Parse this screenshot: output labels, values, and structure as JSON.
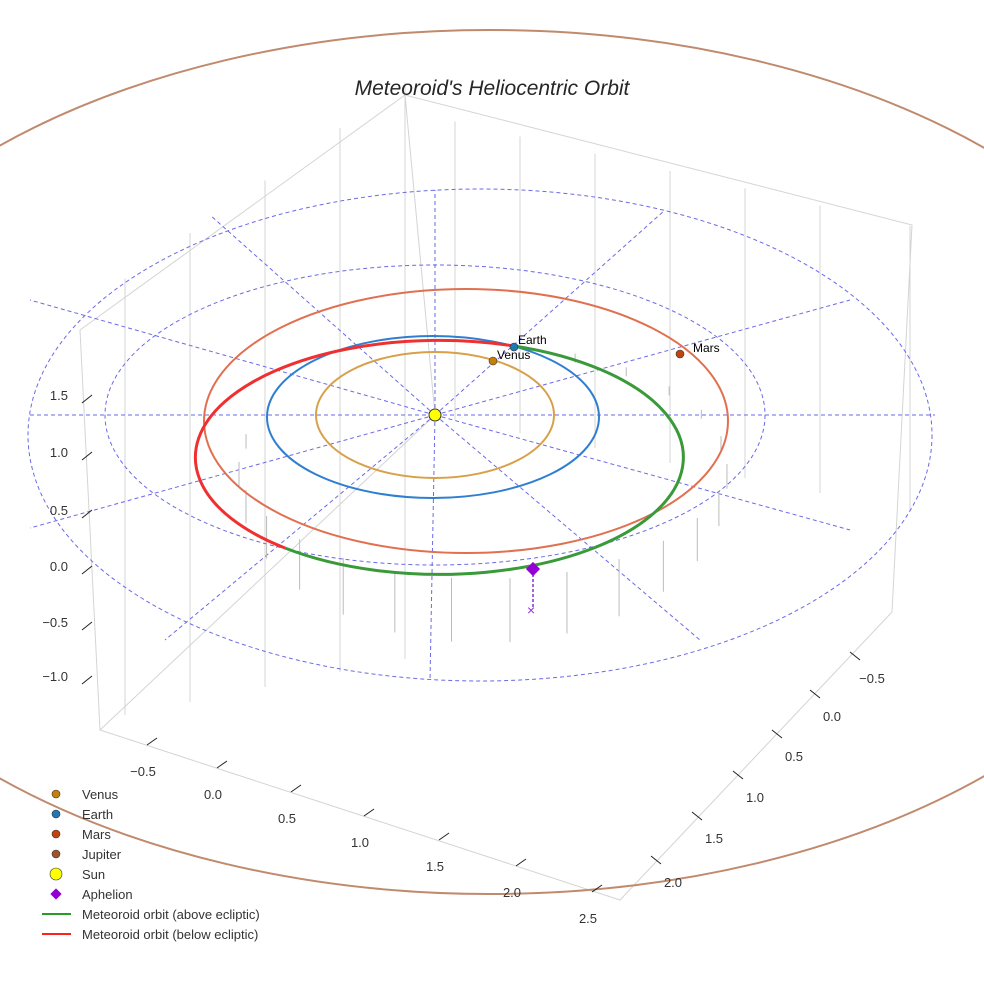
{
  "chart_data": {
    "type": "scatter",
    "title": "Meteoroid's Heliocentric Orbit",
    "projection": "3d",
    "x_ticks": [
      "−0.5",
      "0.0",
      "0.5",
      "1.0",
      "1.5",
      "2.0",
      "2.5"
    ],
    "y_ticks": [
      "−0.5",
      "0.0",
      "0.5",
      "1.0",
      "1.5",
      "2.0"
    ],
    "z_ticks": [
      "1.5",
      "1.0",
      "0.5",
      "0.0",
      "−0.5",
      "−1.0"
    ],
    "planet_labels": {
      "earth": "Earth",
      "venus": "Venus",
      "mars": "Mars"
    },
    "bodies": [
      {
        "name": "Sun",
        "color": "#ffff00",
        "x": 0,
        "y": 0,
        "z": 0
      },
      {
        "name": "Venus",
        "color": "#c87f0a",
        "orbit_radius_au": 0.72
      },
      {
        "name": "Earth",
        "color": "#1f77b4",
        "orbit_radius_au": 1.0
      },
      {
        "name": "Mars",
        "color": "#c1440e",
        "orbit_radius_au": 1.52
      },
      {
        "name": "Jupiter",
        "color": "#a0522d",
        "orbit_radius_au": 5.2
      }
    ],
    "meteoroid": {
      "perihelion_au": 1.0,
      "aphelion_au": 2.0,
      "above_color": "#2ca02c",
      "below_color": "#ff2020"
    },
    "legend": {
      "placement": "lower-left",
      "entries": [
        "Venus",
        "Earth",
        "Mars",
        "Jupiter",
        "Sun",
        "Aphelion",
        "Meteoroid orbit (above ecliptic)",
        "Meteoroid orbit (below ecliptic)"
      ]
    }
  }
}
